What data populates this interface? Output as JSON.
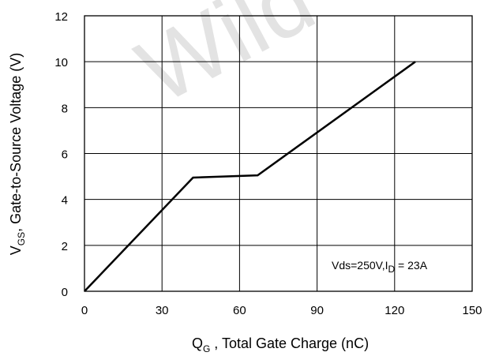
{
  "chart_data": {
    "type": "line",
    "x_ticks": [
      0,
      30,
      60,
      90,
      120,
      150
    ],
    "y_ticks": [
      0,
      2,
      4,
      6,
      8,
      10,
      12
    ],
    "xlim": [
      0,
      150
    ],
    "ylim": [
      0,
      12
    ],
    "grid": true,
    "xlabel": {
      "main": "Q",
      "sub": "G",
      "rest": " , Total Gate Charge (nC)"
    },
    "ylabel": {
      "main": "V",
      "sub": "GS",
      "rest": ",  Gate-to-Source Voltage (V)"
    },
    "series": [
      {
        "points": [
          [
            0,
            0
          ],
          [
            42,
            4.95
          ],
          [
            67,
            5.05
          ],
          [
            128,
            10
          ]
        ],
        "color": "#000000"
      }
    ],
    "annotation": {
      "pre": "Vds=250V,I",
      "sub": "D",
      "post": " = 23A"
    },
    "watermark": "Wild"
  }
}
